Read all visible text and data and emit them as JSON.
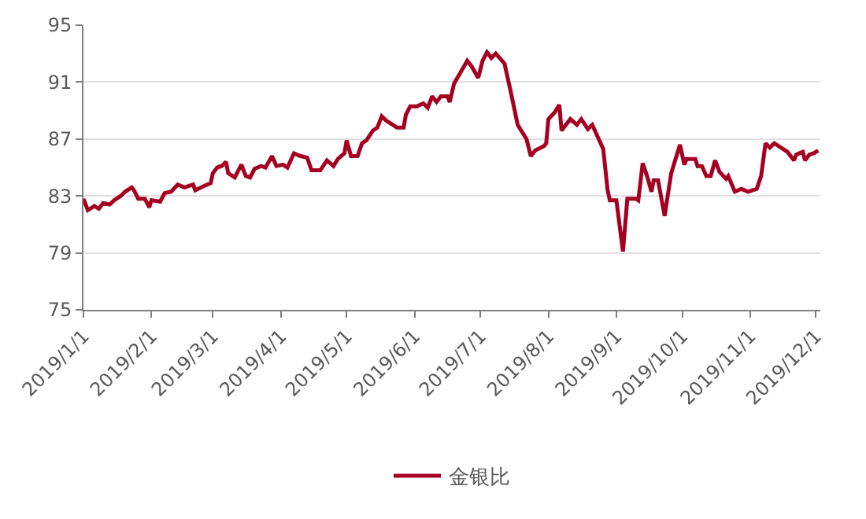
{
  "chart_data": {
    "type": "line",
    "x": [
      "2019-01-01",
      "2019-01-03",
      "2019-01-06",
      "2019-01-08",
      "2019-01-10",
      "2019-01-13",
      "2019-01-15",
      "2019-01-18",
      "2019-01-20",
      "2019-01-23",
      "2019-01-24",
      "2019-01-26",
      "2019-01-29",
      "2019-01-31",
      "2019-02-01",
      "2019-02-05",
      "2019-02-07",
      "2019-02-10",
      "2019-02-13",
      "2019-02-16",
      "2019-02-20",
      "2019-02-21",
      "2019-02-25",
      "2019-02-28",
      "2019-03-01",
      "2019-03-03",
      "2019-03-05",
      "2019-03-07",
      "2019-03-08",
      "2019-03-11",
      "2019-03-14",
      "2019-03-16",
      "2019-03-18",
      "2019-03-20",
      "2019-03-23",
      "2019-03-25",
      "2019-03-28",
      "2019-03-30",
      "2019-04-02",
      "2019-04-04",
      "2019-04-07",
      "2019-04-10",
      "2019-04-13",
      "2019-04-15",
      "2019-04-19",
      "2019-04-22",
      "2019-04-25",
      "2019-04-27",
      "2019-04-30",
      "2019-05-01",
      "2019-05-03",
      "2019-05-06",
      "2019-05-08",
      "2019-05-10",
      "2019-05-13",
      "2019-05-15",
      "2019-05-17",
      "2019-05-19",
      "2019-05-22",
      "2019-05-24",
      "2019-05-27",
      "2019-05-28",
      "2019-05-30",
      "2019-06-02",
      "2019-06-05",
      "2019-06-07",
      "2019-06-09",
      "2019-06-11",
      "2019-06-13",
      "2019-06-16",
      "2019-06-17",
      "2019-06-19",
      "2019-06-22",
      "2019-06-25",
      "2019-06-27",
      "2019-06-30",
      "2019-07-02",
      "2019-07-04",
      "2019-07-06",
      "2019-07-08",
      "2019-07-12",
      "2019-07-15",
      "2019-07-18",
      "2019-07-22",
      "2019-07-24",
      "2019-07-26",
      "2019-07-30",
      "2019-07-31",
      "2019-08-01",
      "2019-08-04",
      "2019-08-06",
      "2019-08-07",
      "2019-08-11",
      "2019-08-14",
      "2019-08-16",
      "2019-08-19",
      "2019-08-21",
      "2019-08-26",
      "2019-08-28",
      "2019-08-29",
      "2019-09-01",
      "2019-09-04",
      "2019-09-06",
      "2019-09-10",
      "2019-09-11",
      "2019-09-13",
      "2019-09-15",
      "2019-09-17",
      "2019-09-18",
      "2019-09-20",
      "2019-09-23",
      "2019-09-26",
      "2019-09-30",
      "2019-10-02",
      "2019-10-03",
      "2019-10-07",
      "2019-10-08",
      "2019-10-10",
      "2019-10-12",
      "2019-10-14",
      "2019-10-16",
      "2019-10-18",
      "2019-10-21",
      "2019-10-22",
      "2019-10-25",
      "2019-10-28",
      "2019-10-31",
      "2019-11-04",
      "2019-11-06",
      "2019-11-08",
      "2019-11-10",
      "2019-11-12",
      "2019-11-15",
      "2019-11-18",
      "2019-11-21",
      "2019-11-22",
      "2019-11-25",
      "2019-11-26",
      "2019-11-28",
      "2019-11-30",
      "2019-12-02"
    ],
    "series": [
      {
        "name": "金银比",
        "color": "#a50021",
        "values": [
          82.8,
          82.0,
          82.3,
          82.1,
          82.5,
          82.4,
          82.7,
          83.0,
          83.3,
          83.6,
          83.4,
          82.8,
          82.8,
          82.2,
          82.7,
          82.6,
          83.2,
          83.3,
          83.8,
          83.6,
          83.8,
          83.4,
          83.7,
          83.9,
          84.6,
          85.0,
          85.1,
          85.4,
          84.6,
          84.3,
          85.2,
          84.4,
          84.3,
          84.9,
          85.1,
          85.0,
          85.8,
          85.1,
          85.2,
          85.0,
          86.0,
          85.8,
          85.7,
          84.8,
          84.8,
          85.5,
          85.1,
          85.6,
          86.0,
          86.9,
          85.8,
          85.8,
          86.7,
          86.9,
          87.6,
          87.8,
          88.6,
          88.3,
          88.0,
          87.8,
          87.8,
          88.7,
          89.3,
          89.3,
          89.5,
          89.2,
          90.0,
          89.6,
          90.0,
          90.0,
          89.6,
          90.9,
          91.7,
          92.5,
          92.1,
          91.3,
          92.5,
          93.1,
          92.7,
          93.0,
          92.3,
          90.2,
          88.0,
          87.0,
          85.8,
          86.2,
          86.5,
          86.7,
          88.4,
          88.9,
          89.4,
          87.6,
          88.4,
          88.0,
          88.4,
          87.7,
          88.0,
          86.3,
          83.4,
          82.7,
          82.7,
          79.1,
          82.8,
          82.8,
          82.7,
          85.3,
          84.4,
          83.3,
          84.1,
          84.1,
          81.6,
          84.6,
          86.6,
          85.2,
          85.6,
          85.6,
          85.1,
          85.1,
          84.4,
          84.4,
          85.5,
          84.7,
          84.2,
          84.4,
          83.3,
          83.5,
          83.3,
          83.5,
          84.4,
          86.7,
          86.4,
          86.7,
          86.4,
          86.1,
          85.5,
          85.9,
          86.1,
          85.5,
          85.9,
          86.0,
          86.2
        ]
      }
    ],
    "xlim": [
      "2019-01-01",
      "2019-12-03"
    ],
    "xticks": [
      {
        "value": "2019-01-01",
        "label": "2019/1/1"
      },
      {
        "value": "2019-02-01",
        "label": "2019/2/1"
      },
      {
        "value": "2019-03-01",
        "label": "2019/3/1"
      },
      {
        "value": "2019-04-01",
        "label": "2019/4/1"
      },
      {
        "value": "2019-05-01",
        "label": "2019/5/1"
      },
      {
        "value": "2019-06-01",
        "label": "2019/6/1"
      },
      {
        "value": "2019-07-01",
        "label": "2019/7/1"
      },
      {
        "value": "2019-08-01",
        "label": "2019/8/1"
      },
      {
        "value": "2019-09-01",
        "label": "2019/9/1"
      },
      {
        "value": "2019-10-01",
        "label": "2019/10/1"
      },
      {
        "value": "2019-11-01",
        "label": "2019/11/1"
      },
      {
        "value": "2019-12-01",
        "label": "2019/12/1"
      }
    ],
    "ylim": [
      75,
      95
    ],
    "yticks": [
      75,
      79,
      83,
      87,
      91,
      95
    ],
    "grid": "y",
    "legend": "bottom",
    "marker": "none",
    "line_style": "solid"
  }
}
